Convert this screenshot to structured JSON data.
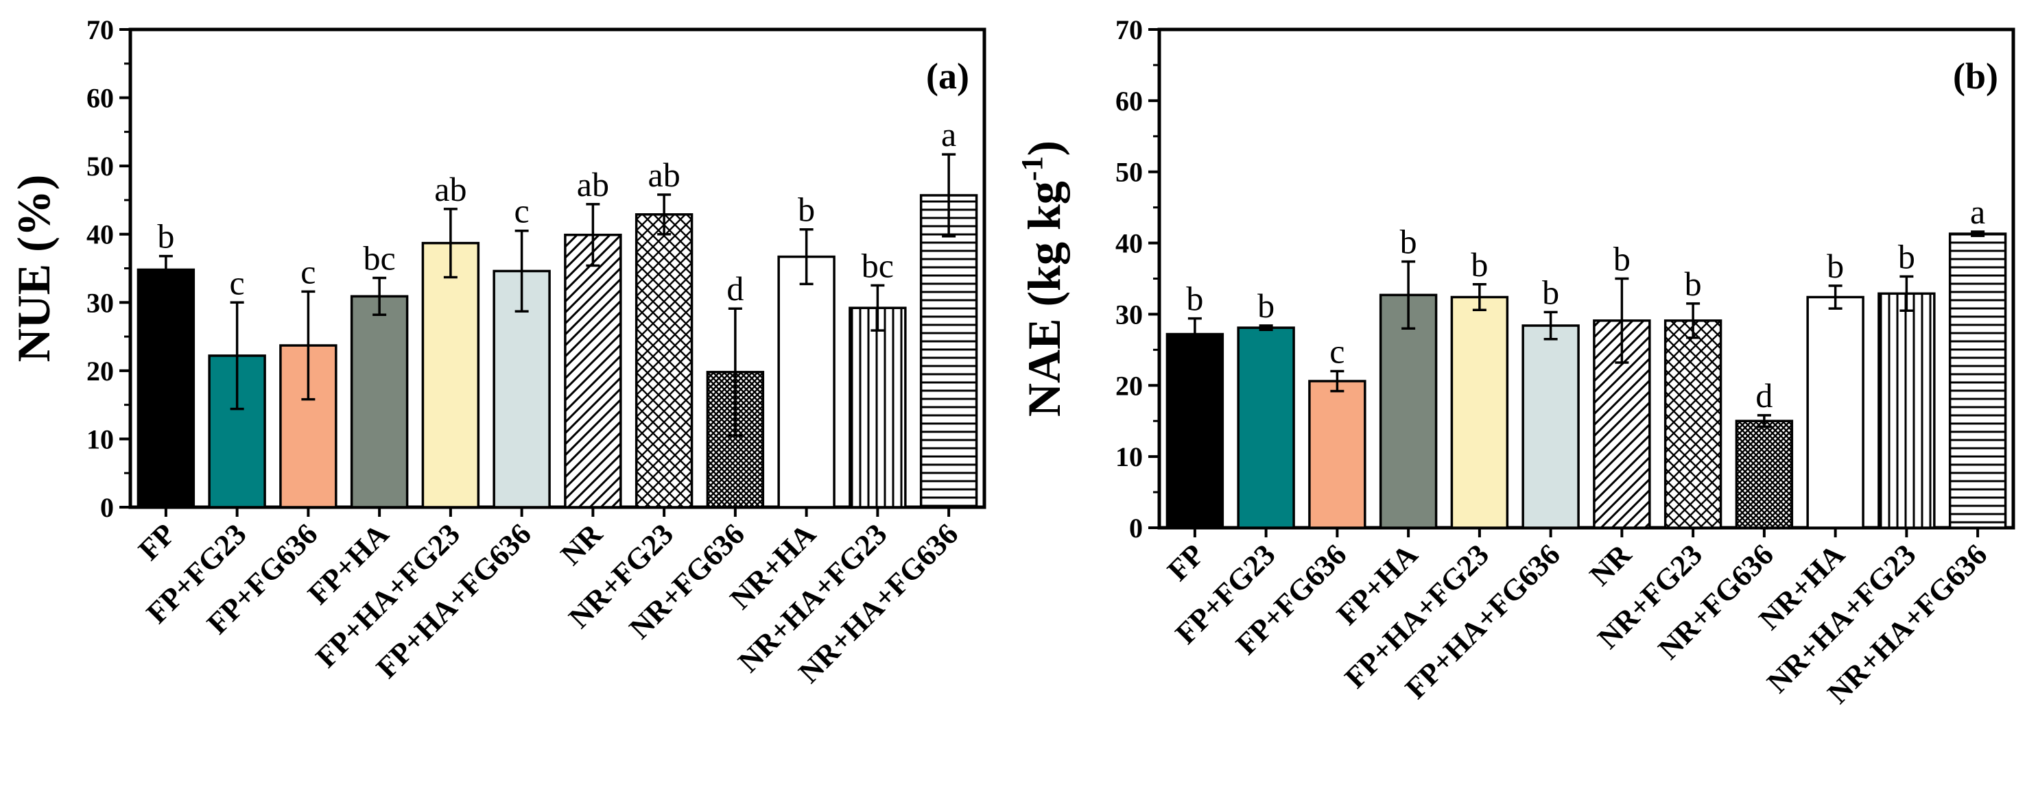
{
  "chart_data": [
    {
      "type": "bar",
      "panel": "(a)",
      "ylabel": "NUE (%)",
      "ylabel_superscript": "",
      "ylim": [
        0,
        70
      ],
      "yticks": [
        0,
        10,
        20,
        30,
        40,
        50,
        60,
        70
      ],
      "categories": [
        "FP",
        "FP+FG23",
        "FP+FG636",
        "FP+HA",
        "FP+HA+FG23",
        "FP+HA+FG636",
        "NR",
        "NR+FG23",
        "NR+FG636",
        "NR+HA",
        "NR+HA+FG23",
        "NR+HA+FG636"
      ],
      "values": [
        34.8,
        22.2,
        23.7,
        30.9,
        38.7,
        34.6,
        39.9,
        42.9,
        19.8,
        36.7,
        29.2,
        45.7
      ],
      "errors": [
        2.0,
        7.8,
        7.9,
        2.7,
        5.0,
        5.9,
        4.5,
        2.9,
        9.3,
        4.0,
        3.3,
        6.0
      ],
      "letters": [
        "b",
        "c",
        "c",
        "bc",
        "ab",
        "c",
        "ab",
        "ab",
        "d",
        "b",
        "bc",
        "a"
      ]
    },
    {
      "type": "bar",
      "panel": "(b)",
      "ylabel": "NAE (kg kg",
      "ylabel_superscript": "-1",
      "ylim": [
        0,
        70
      ],
      "yticks": [
        0,
        10,
        20,
        30,
        40,
        50,
        60,
        70
      ],
      "categories": [
        "FP",
        "FP+FG23",
        "FP+FG636",
        "FP+HA",
        "FP+HA+FG23",
        "FP+HA+FG636",
        "NR",
        "NR+FG23",
        "NR+FG636",
        "NR+HA",
        "NR+HA+FG23",
        "NR+HA+FG636"
      ],
      "values": [
        27.2,
        28.1,
        20.6,
        32.7,
        32.4,
        28.4,
        29.1,
        29.1,
        15.0,
        32.4,
        32.9,
        41.3
      ],
      "errors": [
        2.2,
        0.3,
        1.4,
        4.7,
        1.8,
        1.9,
        5.9,
        2.4,
        0.8,
        1.6,
        2.4,
        0.3
      ],
      "letters": [
        "b",
        "b",
        "c",
        "b",
        "b",
        "b",
        "b",
        "b",
        "d",
        "b",
        "b",
        "a"
      ]
    }
  ],
  "bar_styles": [
    {
      "fill": "#000000",
      "pattern": "solid"
    },
    {
      "fill": "#008080",
      "pattern": "solid"
    },
    {
      "fill": "#f7a982",
      "pattern": "solid"
    },
    {
      "fill": "#7b877c",
      "pattern": "solid"
    },
    {
      "fill": "#fbf0bc",
      "pattern": "solid"
    },
    {
      "fill": "#d5e2e2",
      "pattern": "solid"
    },
    {
      "fill": "#ffffff",
      "pattern": "diagonal"
    },
    {
      "fill": "#ffffff",
      "pattern": "crosshatch"
    },
    {
      "fill": "#ffffff",
      "pattern": "dense-dots"
    },
    {
      "fill": "#ffffff",
      "pattern": "solid"
    },
    {
      "fill": "#ffffff",
      "pattern": "vertical"
    },
    {
      "fill": "#ffffff",
      "pattern": "horizontal"
    }
  ]
}
